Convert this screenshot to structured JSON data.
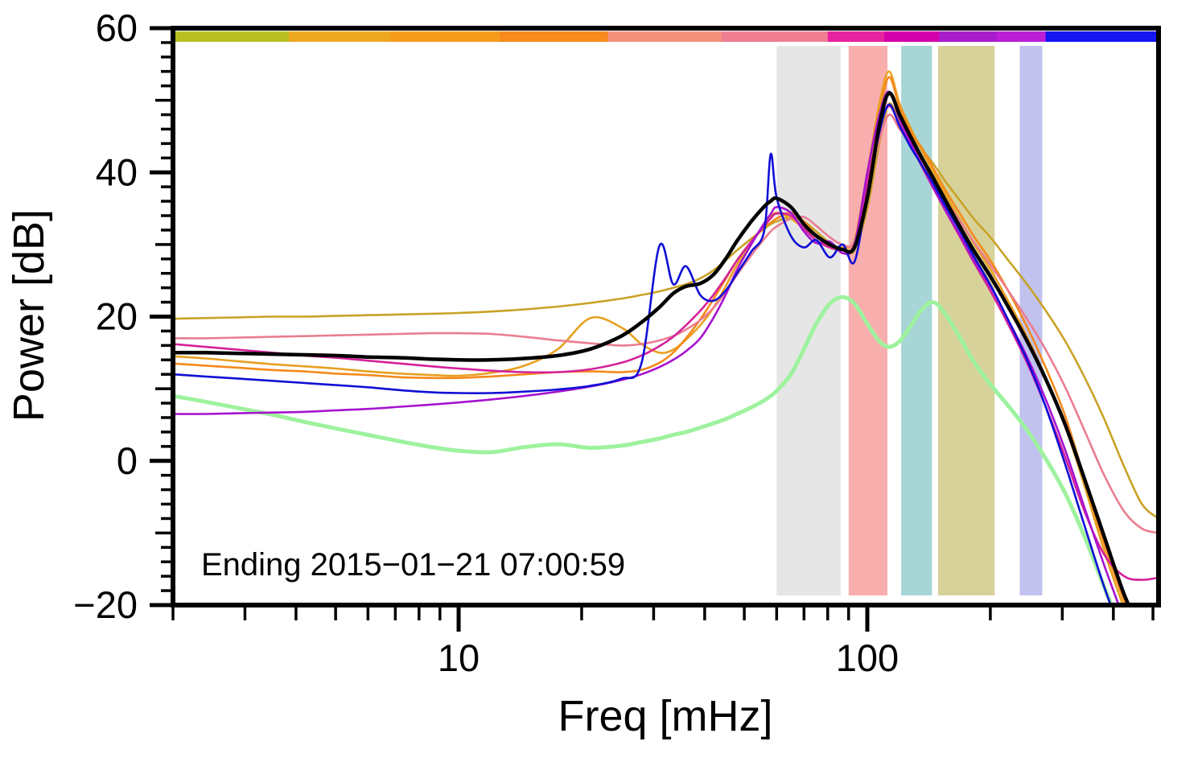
{
  "chart_data": {
    "type": "line",
    "title": "",
    "xlabel": "Freq [mHz]",
    "ylabel": "Power [dB]",
    "annotation": "Ending 2015−01−21 07:00:59",
    "x_scale": "log",
    "xlim": [
      2,
      516
    ],
    "ylim": [
      -20,
      60
    ],
    "grid": false,
    "legend": false,
    "frame_color": "#000000",
    "xticks": {
      "major": [
        {
          "value": 10,
          "label": "10"
        },
        {
          "value": 100,
          "label": "100"
        }
      ],
      "minor": [
        2,
        3,
        4,
        5,
        6,
        7,
        8,
        9,
        20,
        30,
        40,
        50,
        60,
        70,
        80,
        90,
        200,
        300,
        400,
        500
      ]
    },
    "yticks": {
      "minor_step": 2,
      "mid_step": 10,
      "major_step": 20,
      "major": [
        {
          "value": 60,
          "label": "60"
        },
        {
          "value": 40,
          "label": "40"
        },
        {
          "value": 20,
          "label": "20"
        },
        {
          "value": 0,
          "label": "0"
        },
        {
          "value": -20,
          "label": "−20"
        }
      ]
    },
    "bands": [
      {
        "f0": 60,
        "f1": 86,
        "color": "#e6e6e6"
      },
      {
        "f0": 90,
        "f1": 112,
        "color": "#f9aeae"
      },
      {
        "f0": 121,
        "f1": 144,
        "color": "#a8d5d5"
      },
      {
        "f0": 149,
        "f1": 205,
        "color": "#d7d299"
      },
      {
        "f0": 236,
        "f1": 268,
        "color": "#c2c2ef"
      }
    ],
    "topbar_segments": [
      {
        "f0": 2,
        "f1": 3.84,
        "color": "#b8bf22"
      },
      {
        "f0": 3.84,
        "f1": 6.8,
        "color": "#eda821"
      },
      {
        "f0": 6.8,
        "f1": 12.6,
        "color": "#f69c1b"
      },
      {
        "f0": 12.6,
        "f1": 23.2,
        "color": "#f78b1d"
      },
      {
        "f0": 23.2,
        "f1": 44,
        "color": "#f4917d"
      },
      {
        "f0": 44,
        "f1": 80,
        "color": "#ef7e93"
      },
      {
        "f0": 80,
        "f1": 110,
        "color": "#e8239f"
      },
      {
        "f0": 110,
        "f1": 150,
        "color": "#d400ab"
      },
      {
        "f0": 150,
        "f1": 207,
        "color": "#a81ccc"
      },
      {
        "f0": 207,
        "f1": 273,
        "color": "#bb1ed6"
      },
      {
        "f0": 273,
        "f1": 516,
        "color": "#1515f2"
      }
    ],
    "x": [
      2,
      2.4,
      2.9,
      3.5,
      4.2,
      5,
      6,
      7.2,
      8.6,
      10,
      12,
      14.5,
      17.5,
      21,
      25,
      28,
      31,
      33.5,
      36,
      39,
      42,
      45,
      48,
      52,
      56,
      58,
      60,
      65,
      70,
      75,
      81,
      87,
      93,
      100,
      107,
      113,
      120,
      128,
      136,
      145,
      155,
      168,
      182,
      200,
      220,
      245,
      272,
      305,
      340,
      380,
      425,
      470,
      516
    ],
    "series": [
      {
        "name": "pale-green",
        "color": "#9ef29e",
        "width": 5,
        "values": [
          9.0,
          8.2,
          7.3,
          6.4,
          5.4,
          4.5,
          3.6,
          2.7,
          1.9,
          1.4,
          1.2,
          1.9,
          2.3,
          1.8,
          2.1,
          2.6,
          3.1,
          3.6,
          4.0,
          4.6,
          5.2,
          5.8,
          6.5,
          7.4,
          8.4,
          9.0,
          9.7,
          12.0,
          15.5,
          19.0,
          21.8,
          22.7,
          21.8,
          19.0,
          16.6,
          15.8,
          16.6,
          18.8,
          21.0,
          22.0,
          20.4,
          17.2,
          13.8,
          10.6,
          7.8,
          4.4,
          0.5,
          -4.5,
          -10.5,
          -17.5,
          -24.5,
          -31.0,
          -36.0
        ]
      },
      {
        "name": "gold",
        "color": "#c9a227",
        "width": 2.6,
        "values": [
          19.7,
          19.8,
          19.9,
          20.0,
          20.0,
          20.1,
          20.2,
          20.3,
          20.4,
          20.5,
          20.7,
          21.0,
          21.4,
          21.9,
          22.5,
          23.0,
          23.5,
          24.0,
          24.5,
          25.3,
          26.4,
          27.8,
          29.2,
          30.8,
          32.2,
          32.8,
          33.2,
          33.8,
          33.2,
          31.8,
          30.2,
          29.2,
          29.2,
          35.0,
          44.0,
          49.5,
          47.0,
          45.0,
          43.2,
          41.2,
          38.8,
          36.2,
          33.6,
          31.0,
          28.0,
          24.6,
          21.0,
          16.6,
          11.6,
          5.8,
          -0.8,
          -6.0,
          -8.0
        ]
      },
      {
        "name": "orange-b",
        "color": "#e8a021",
        "width": 2.6,
        "values": [
          14.5,
          14.2,
          13.8,
          13.4,
          13.1,
          12.8,
          12.4,
          12.1,
          11.9,
          11.8,
          12.2,
          13.2,
          15.5,
          19.8,
          18.5,
          16.2,
          15.0,
          15.4,
          16.8,
          18.8,
          21.2,
          24.2,
          27.2,
          30.2,
          32.8,
          33.8,
          34.4,
          33.6,
          32.2,
          30.6,
          29.6,
          29.6,
          30.6,
          40.0,
          49.5,
          54.0,
          49.5,
          46.0,
          43.0,
          40.0,
          37.0,
          33.6,
          30.2,
          26.6,
          22.4,
          17.4,
          11.8,
          4.8,
          -3.5,
          -12.5,
          -20.5,
          -27.5,
          -33.5
        ]
      },
      {
        "name": "orange-a",
        "color": "#f5891a",
        "width": 2.6,
        "values": [
          13.5,
          13.2,
          12.9,
          12.6,
          12.4,
          12.1,
          11.9,
          11.6,
          11.5,
          11.5,
          11.7,
          12.0,
          12.3,
          12.4,
          12.3,
          12.6,
          13.6,
          15.0,
          17.0,
          19.6,
          22.4,
          25.2,
          27.8,
          30.4,
          32.4,
          33.0,
          33.6,
          34.4,
          33.2,
          31.2,
          29.6,
          29.2,
          29.6,
          38.5,
          48.0,
          53.2,
          49.0,
          45.6,
          43.4,
          40.6,
          37.6,
          34.4,
          31.2,
          27.8,
          23.8,
          18.8,
          13.2,
          6.2,
          -2.5,
          -11.5,
          -19.5,
          -26.5,
          -32.5
        ]
      },
      {
        "name": "salmon-pink",
        "color": "#ea7d90",
        "width": 2.6,
        "values": [
          17.0,
          17.0,
          17.1,
          17.2,
          17.3,
          17.4,
          17.5,
          17.6,
          17.7,
          17.7,
          17.6,
          17.2,
          16.7,
          16.3,
          16.0,
          16.2,
          16.7,
          17.3,
          18.2,
          19.5,
          21.2,
          23.4,
          25.8,
          28.5,
          30.8,
          31.8,
          32.5,
          33.6,
          33.8,
          32.6,
          31.0,
          30.0,
          30.4,
          37.5,
          44.5,
          48.0,
          46.0,
          43.8,
          41.4,
          38.8,
          36.2,
          33.4,
          30.4,
          27.2,
          23.8,
          19.8,
          15.6,
          10.2,
          4.2,
          -2.0,
          -7.0,
          -9.4,
          -10.0
        ]
      },
      {
        "name": "magenta-pink",
        "color": "#d4219b",
        "width": 2.6,
        "values": [
          16.2,
          15.8,
          15.4,
          15.0,
          14.6,
          14.3,
          13.9,
          13.5,
          13.1,
          12.8,
          12.5,
          12.3,
          12.3,
          12.7,
          13.6,
          14.6,
          15.9,
          17.2,
          18.8,
          20.8,
          23.0,
          25.4,
          27.8,
          30.4,
          32.6,
          33.6,
          34.3,
          34.0,
          32.2,
          30.6,
          29.6,
          29.2,
          30.0,
          38.5,
          46.0,
          49.2,
          46.6,
          43.8,
          40.8,
          37.8,
          34.8,
          31.2,
          27.6,
          23.6,
          19.2,
          13.8,
          7.8,
          0.5,
          -7.0,
          -13.0,
          -16.0,
          -16.5,
          -16.2
        ]
      },
      {
        "name": "purple",
        "color": "#a513cf",
        "width": 2.6,
        "values": [
          6.5,
          6.5,
          6.6,
          6.7,
          6.8,
          7.0,
          7.2,
          7.5,
          7.8,
          8.1,
          8.5,
          9.0,
          9.6,
          10.3,
          11.2,
          12.0,
          13.0,
          14.0,
          15.2,
          17.0,
          19.8,
          23.0,
          26.5,
          30.0,
          33.0,
          34.2,
          35.2,
          34.4,
          31.8,
          30.2,
          30.4,
          28.8,
          30.0,
          40.0,
          48.0,
          51.2,
          47.4,
          44.0,
          41.0,
          38.0,
          34.8,
          31.4,
          27.8,
          24.2,
          19.8,
          14.6,
          8.8,
          1.5,
          -6.5,
          -14.5,
          -22.0,
          -28.5,
          -34.0
        ]
      },
      {
        "name": "blue",
        "color": "#0f0fd6",
        "width": 2.6,
        "values": [
          12.0,
          11.7,
          11.4,
          11.1,
          10.8,
          10.5,
          10.2,
          9.8,
          9.5,
          9.4,
          9.4,
          9.6,
          9.9,
          10.4,
          11.4,
          13.5,
          29.8,
          24.5,
          27.0,
          23.0,
          22.2,
          23.6,
          26.0,
          29.0,
          32.0,
          42.5,
          36.5,
          31.2,
          29.6,
          30.6,
          28.2,
          30.0,
          27.6,
          37.0,
          45.5,
          49.4,
          46.4,
          43.4,
          41.0,
          38.4,
          35.4,
          32.0,
          28.4,
          24.4,
          19.8,
          14.2,
          7.8,
          -0.5,
          -9.0,
          -17.5,
          -25.0,
          -31.5,
          -37.0
        ]
      },
      {
        "name": "black-mean",
        "color": "#000000",
        "width": 4.5,
        "values": [
          15.0,
          15.0,
          14.9,
          14.8,
          14.7,
          14.6,
          14.4,
          14.3,
          14.1,
          14.0,
          14.0,
          14.2,
          14.6,
          15.5,
          17.3,
          19.2,
          21.3,
          23.2,
          24.2,
          24.6,
          25.8,
          28.0,
          30.5,
          33.2,
          35.3,
          36.0,
          36.4,
          35.2,
          32.8,
          31.2,
          30.0,
          29.3,
          29.6,
          36.5,
          46.5,
          51.0,
          48.0,
          44.8,
          42.0,
          39.2,
          36.2,
          32.6,
          29.2,
          25.6,
          21.6,
          16.8,
          11.6,
          5.0,
          -2.5,
          -10.5,
          -18.5,
          -24.0,
          -29.0
        ]
      }
    ]
  }
}
